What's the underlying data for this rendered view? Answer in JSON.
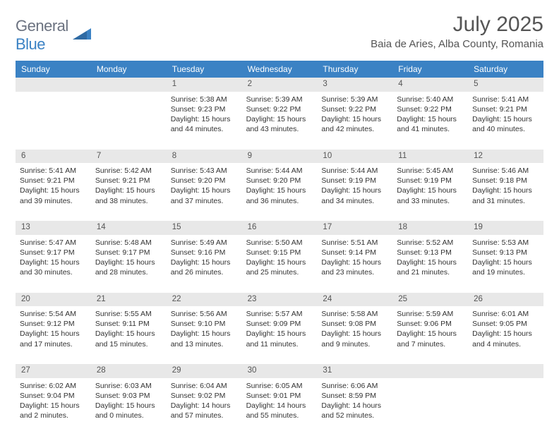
{
  "logo": {
    "text_general": "General",
    "text_blue": "Blue"
  },
  "title": "July 2025",
  "location": "Baia de Aries, Alba County, Romania",
  "day_names": [
    "Sunday",
    "Monday",
    "Tuesday",
    "Wednesday",
    "Thursday",
    "Friday",
    "Saturday"
  ],
  "colors": {
    "header_bg": "#3b82c4",
    "header_text": "#ffffff",
    "daynum_bg": "#e8e8e8",
    "body_text": "#333333"
  },
  "weeks": [
    {
      "nums": [
        "",
        "",
        "1",
        "2",
        "3",
        "4",
        "5"
      ],
      "cells": [
        null,
        null,
        {
          "sunrise": "Sunrise: 5:38 AM",
          "sunset": "Sunset: 9:23 PM",
          "day1": "Daylight: 15 hours",
          "day2": "and 44 minutes."
        },
        {
          "sunrise": "Sunrise: 5:39 AM",
          "sunset": "Sunset: 9:22 PM",
          "day1": "Daylight: 15 hours",
          "day2": "and 43 minutes."
        },
        {
          "sunrise": "Sunrise: 5:39 AM",
          "sunset": "Sunset: 9:22 PM",
          "day1": "Daylight: 15 hours",
          "day2": "and 42 minutes."
        },
        {
          "sunrise": "Sunrise: 5:40 AM",
          "sunset": "Sunset: 9:22 PM",
          "day1": "Daylight: 15 hours",
          "day2": "and 41 minutes."
        },
        {
          "sunrise": "Sunrise: 5:41 AM",
          "sunset": "Sunset: 9:21 PM",
          "day1": "Daylight: 15 hours",
          "day2": "and 40 minutes."
        }
      ]
    },
    {
      "nums": [
        "6",
        "7",
        "8",
        "9",
        "10",
        "11",
        "12"
      ],
      "cells": [
        {
          "sunrise": "Sunrise: 5:41 AM",
          "sunset": "Sunset: 9:21 PM",
          "day1": "Daylight: 15 hours",
          "day2": "and 39 minutes."
        },
        {
          "sunrise": "Sunrise: 5:42 AM",
          "sunset": "Sunset: 9:21 PM",
          "day1": "Daylight: 15 hours",
          "day2": "and 38 minutes."
        },
        {
          "sunrise": "Sunrise: 5:43 AM",
          "sunset": "Sunset: 9:20 PM",
          "day1": "Daylight: 15 hours",
          "day2": "and 37 minutes."
        },
        {
          "sunrise": "Sunrise: 5:44 AM",
          "sunset": "Sunset: 9:20 PM",
          "day1": "Daylight: 15 hours",
          "day2": "and 36 minutes."
        },
        {
          "sunrise": "Sunrise: 5:44 AM",
          "sunset": "Sunset: 9:19 PM",
          "day1": "Daylight: 15 hours",
          "day2": "and 34 minutes."
        },
        {
          "sunrise": "Sunrise: 5:45 AM",
          "sunset": "Sunset: 9:19 PM",
          "day1": "Daylight: 15 hours",
          "day2": "and 33 minutes."
        },
        {
          "sunrise": "Sunrise: 5:46 AM",
          "sunset": "Sunset: 9:18 PM",
          "day1": "Daylight: 15 hours",
          "day2": "and 31 minutes."
        }
      ]
    },
    {
      "nums": [
        "13",
        "14",
        "15",
        "16",
        "17",
        "18",
        "19"
      ],
      "cells": [
        {
          "sunrise": "Sunrise: 5:47 AM",
          "sunset": "Sunset: 9:17 PM",
          "day1": "Daylight: 15 hours",
          "day2": "and 30 minutes."
        },
        {
          "sunrise": "Sunrise: 5:48 AM",
          "sunset": "Sunset: 9:17 PM",
          "day1": "Daylight: 15 hours",
          "day2": "and 28 minutes."
        },
        {
          "sunrise": "Sunrise: 5:49 AM",
          "sunset": "Sunset: 9:16 PM",
          "day1": "Daylight: 15 hours",
          "day2": "and 26 minutes."
        },
        {
          "sunrise": "Sunrise: 5:50 AM",
          "sunset": "Sunset: 9:15 PM",
          "day1": "Daylight: 15 hours",
          "day2": "and 25 minutes."
        },
        {
          "sunrise": "Sunrise: 5:51 AM",
          "sunset": "Sunset: 9:14 PM",
          "day1": "Daylight: 15 hours",
          "day2": "and 23 minutes."
        },
        {
          "sunrise": "Sunrise: 5:52 AM",
          "sunset": "Sunset: 9:13 PM",
          "day1": "Daylight: 15 hours",
          "day2": "and 21 minutes."
        },
        {
          "sunrise": "Sunrise: 5:53 AM",
          "sunset": "Sunset: 9:13 PM",
          "day1": "Daylight: 15 hours",
          "day2": "and 19 minutes."
        }
      ]
    },
    {
      "nums": [
        "20",
        "21",
        "22",
        "23",
        "24",
        "25",
        "26"
      ],
      "cells": [
        {
          "sunrise": "Sunrise: 5:54 AM",
          "sunset": "Sunset: 9:12 PM",
          "day1": "Daylight: 15 hours",
          "day2": "and 17 minutes."
        },
        {
          "sunrise": "Sunrise: 5:55 AM",
          "sunset": "Sunset: 9:11 PM",
          "day1": "Daylight: 15 hours",
          "day2": "and 15 minutes."
        },
        {
          "sunrise": "Sunrise: 5:56 AM",
          "sunset": "Sunset: 9:10 PM",
          "day1": "Daylight: 15 hours",
          "day2": "and 13 minutes."
        },
        {
          "sunrise": "Sunrise: 5:57 AM",
          "sunset": "Sunset: 9:09 PM",
          "day1": "Daylight: 15 hours",
          "day2": "and 11 minutes."
        },
        {
          "sunrise": "Sunrise: 5:58 AM",
          "sunset": "Sunset: 9:08 PM",
          "day1": "Daylight: 15 hours",
          "day2": "and 9 minutes."
        },
        {
          "sunrise": "Sunrise: 5:59 AM",
          "sunset": "Sunset: 9:06 PM",
          "day1": "Daylight: 15 hours",
          "day2": "and 7 minutes."
        },
        {
          "sunrise": "Sunrise: 6:01 AM",
          "sunset": "Sunset: 9:05 PM",
          "day1": "Daylight: 15 hours",
          "day2": "and 4 minutes."
        }
      ]
    },
    {
      "nums": [
        "27",
        "28",
        "29",
        "30",
        "31",
        "",
        ""
      ],
      "cells": [
        {
          "sunrise": "Sunrise: 6:02 AM",
          "sunset": "Sunset: 9:04 PM",
          "day1": "Daylight: 15 hours",
          "day2": "and 2 minutes."
        },
        {
          "sunrise": "Sunrise: 6:03 AM",
          "sunset": "Sunset: 9:03 PM",
          "day1": "Daylight: 15 hours",
          "day2": "and 0 minutes."
        },
        {
          "sunrise": "Sunrise: 6:04 AM",
          "sunset": "Sunset: 9:02 PM",
          "day1": "Daylight: 14 hours",
          "day2": "and 57 minutes."
        },
        {
          "sunrise": "Sunrise: 6:05 AM",
          "sunset": "Sunset: 9:01 PM",
          "day1": "Daylight: 14 hours",
          "day2": "and 55 minutes."
        },
        {
          "sunrise": "Sunrise: 6:06 AM",
          "sunset": "Sunset: 8:59 PM",
          "day1": "Daylight: 14 hours",
          "day2": "and 52 minutes."
        },
        null,
        null
      ]
    }
  ]
}
